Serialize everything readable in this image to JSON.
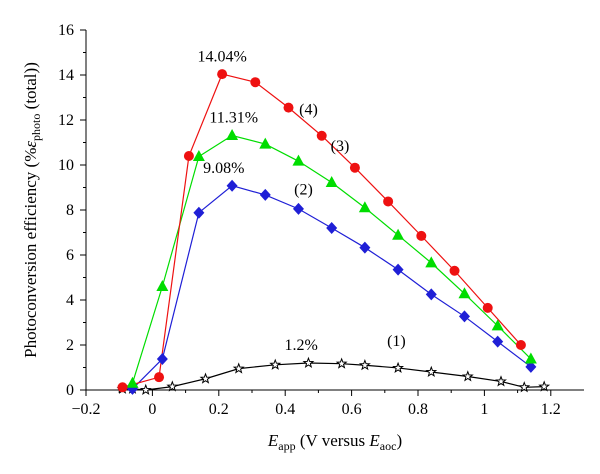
{
  "chart_data": {
    "type": "line",
    "title": "",
    "xlabel": {
      "main": "E",
      "sub": "app",
      "mid": " (V versus ",
      "main2": "E",
      "sub2": "aoc",
      "end": ")"
    },
    "ylabel": {
      "main": "Photoconversion efficiency (%",
      "greek": "ε",
      "sub": "photo",
      "end": " (total))"
    },
    "xlim": [
      -0.2,
      1.3
    ],
    "ylim": [
      0,
      16
    ],
    "xticks": [
      -0.2,
      0,
      0.2,
      0.4,
      0.6,
      0.8,
      1,
      1.2
    ],
    "xtick_labels": [
      "−0.2",
      "0",
      "0.2",
      "0.4",
      "0.6",
      "0.8",
      "1",
      "1.2"
    ],
    "yticks": [
      0,
      2,
      4,
      6,
      8,
      10,
      12,
      14,
      16
    ],
    "ytick_labels": [
      "0",
      "2",
      "4",
      "6",
      "8",
      "10",
      "12",
      "14",
      "16"
    ],
    "grid": false,
    "legend": "none",
    "series": [
      {
        "label": "(1)",
        "color": "#000000",
        "marker": "star",
        "x": [
          -0.09,
          -0.06,
          -0.02,
          0.06,
          0.16,
          0.26,
          0.37,
          0.47,
          0.57,
          0.64,
          0.74,
          0.84,
          0.95,
          1.05,
          1.12,
          1.18
        ],
        "y": [
          0.05,
          0.05,
          0.0,
          0.15,
          0.5,
          0.95,
          1.12,
          1.2,
          1.17,
          1.1,
          0.98,
          0.8,
          0.6,
          0.38,
          0.12,
          0.15
        ]
      },
      {
        "label": "(2)",
        "color": "#1f1fd6",
        "marker": "diamond",
        "x": [
          -0.06,
          0.03,
          0.14,
          0.24,
          0.34,
          0.44,
          0.54,
          0.64,
          0.74,
          0.84,
          0.94,
          1.04,
          1.14
        ],
        "y": [
          0.05,
          1.38,
          7.88,
          9.08,
          8.67,
          8.05,
          7.2,
          6.33,
          5.35,
          4.25,
          3.27,
          2.15,
          1.03
        ]
      },
      {
        "label": "(3)",
        "color": "#00dd00",
        "marker": "triangle",
        "x": [
          -0.06,
          0.03,
          0.14,
          0.24,
          0.34,
          0.44,
          0.54,
          0.64,
          0.74,
          0.84,
          0.94,
          1.04,
          1.14
        ],
        "y": [
          0.3,
          4.6,
          10.38,
          11.31,
          10.93,
          10.17,
          9.22,
          8.1,
          6.88,
          5.65,
          4.28,
          2.85,
          1.38
        ]
      },
      {
        "label": "(4)",
        "color": "#ee1111",
        "marker": "circle",
        "x": [
          -0.09,
          0.02,
          0.11,
          0.21,
          0.31,
          0.41,
          0.51,
          0.61,
          0.71,
          0.81,
          0.91,
          1.01,
          1.11
        ],
        "y": [
          0.12,
          0.57,
          10.4,
          14.04,
          13.68,
          12.55,
          11.3,
          9.88,
          8.38,
          6.85,
          5.3,
          3.65,
          2.0
        ]
      }
    ],
    "annotations": [
      {
        "text": "14.04%",
        "x": 0.21,
        "y": 14.6
      },
      {
        "text": "11.31%",
        "x": 0.245,
        "y": 11.9
      },
      {
        "text": "9.08%",
        "x": 0.215,
        "y": 9.65
      },
      {
        "text": "(4)",
        "x": 0.47,
        "y": 12.25
      },
      {
        "text": "(3)",
        "x": 0.565,
        "y": 10.62
      },
      {
        "text": "(2)",
        "x": 0.455,
        "y": 8.7
      },
      {
        "text": "1.2%",
        "x": 0.448,
        "y": 1.78
      },
      {
        "text": "(1)",
        "x": 0.735,
        "y": 1.95
      }
    ]
  }
}
